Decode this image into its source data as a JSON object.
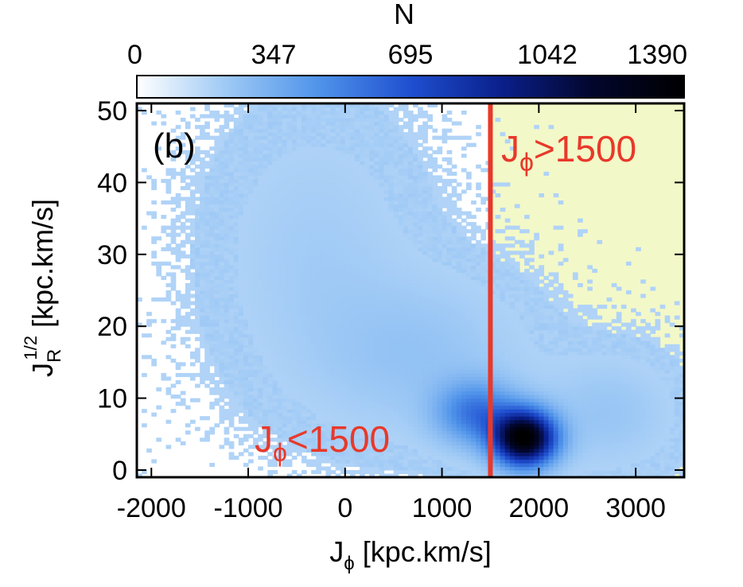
{
  "chart_data": {
    "type": "heatmap",
    "panel_label": "(b)",
    "colorbar": {
      "title": "N",
      "ticks": [
        "0",
        "347",
        "695",
        "1042",
        "1390"
      ],
      "range": [
        0,
        1390
      ],
      "colormap": [
        "#ffffff",
        "#9cc8f5",
        "#4f93ea",
        "#1f4fd0",
        "#0a1f8a",
        "#02062c",
        "#000000"
      ]
    },
    "x_axis": {
      "label_main": "J",
      "label_sub": "ϕ",
      "label_rest": " [kpc.km/s]",
      "range": [
        -2150,
        3500
      ],
      "ticks": [
        -2000,
        -1000,
        0,
        1000,
        2000,
        3000
      ],
      "tick_labels": [
        "-2000",
        "-1000",
        "0",
        "1000",
        "2000",
        "3000"
      ]
    },
    "y_axis": {
      "label_main": "J",
      "label_sub": "R",
      "label_sup": "1/2",
      "label_rest": " [kpc.km/s]",
      "range": [
        -1,
        51
      ],
      "ticks": [
        0,
        10,
        20,
        30,
        40,
        50
      ],
      "tick_labels": [
        "0",
        "10",
        "20",
        "30",
        "40",
        "50"
      ]
    },
    "cut": {
      "value": 1500,
      "color": "#e8392a",
      "region_color": "#f3f8c8",
      "label_high_main": "J",
      "label_high_sub": "ϕ",
      "label_high_rest": ">1500",
      "label_low_main": "J",
      "label_low_sub": "ϕ",
      "label_low_rest": "<1500"
    },
    "density_components": [
      {
        "x": 1850,
        "y": 4.5,
        "sx": 220,
        "sy": 2.6,
        "amp": 1390
      },
      {
        "x": 1350,
        "y": 8,
        "sx": 280,
        "sy": 3.0,
        "amp": 430
      },
      {
        "x": 750,
        "y": 16,
        "sx": 700,
        "sy": 7,
        "amp": 95
      },
      {
        "x": -300,
        "y": 30,
        "sx": 650,
        "sy": 12,
        "amp": 55
      },
      {
        "x": 2700,
        "y": 8,
        "sx": 450,
        "sy": 5,
        "amp": 85
      }
    ]
  }
}
